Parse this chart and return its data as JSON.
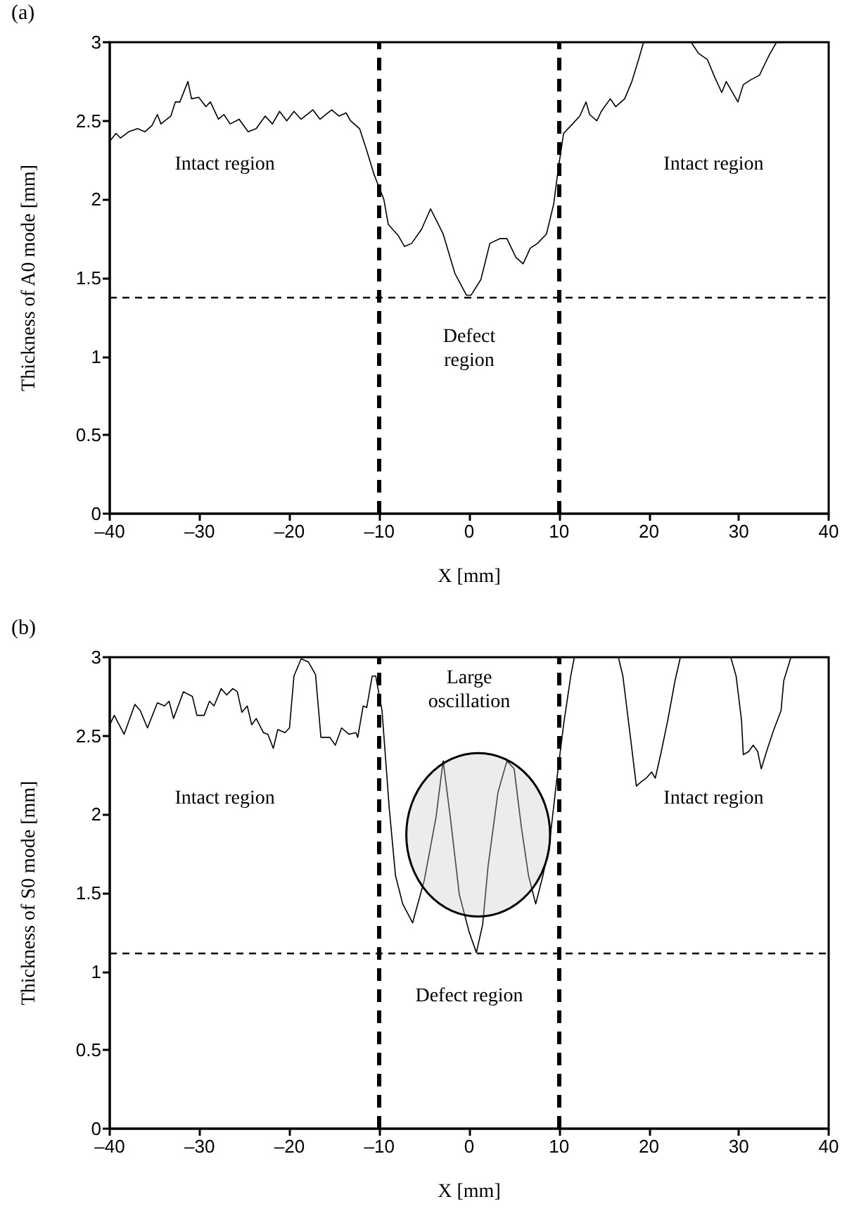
{
  "chart_data": [
    {
      "type": "line",
      "title": "(a)",
      "xlabel": "X [mm]",
      "ylabel": "Thickness of A0 mode [mm]",
      "x": [
        -40,
        -39.3,
        -38.8,
        -37.9,
        -36.9,
        -36.1,
        -35.3,
        -34.7,
        -34.3,
        -33.2,
        -32.7,
        -32.2,
        -31.3,
        -30.9,
        -30.1,
        -29.3,
        -28.8,
        -27.9,
        -27.3,
        -26.6,
        -25.6,
        -24.6,
        -23.7,
        -22.7,
        -21.9,
        -21.1,
        -20.3,
        -19.5,
        -18.7,
        -17.4,
        -16.6,
        -15.3,
        -14.5,
        -13.7,
        -13.2,
        -12.2,
        -11.4,
        -10.6,
        -9.5,
        -9,
        -7.9,
        -7.2,
        -6.4,
        -5.3,
        -4.3,
        -2.9,
        -1.6,
        -0.3,
        0.2,
        1.3,
        2.3,
        3.4,
        4.2,
        5.2,
        6,
        6.8,
        7.6,
        8.6,
        9.4,
        9.9,
        10.5,
        11.5,
        12.3,
        13,
        13.4,
        14.2,
        14.7,
        15.7,
        16.3,
        17.3,
        18.1,
        18.9,
        19.4,
        24.7,
        25.5,
        26.5,
        27.3,
        28.1,
        28.6,
        29.4,
        29.9,
        30.5,
        31.3,
        32.3,
        32.8,
        33.4,
        34.2,
        40
      ],
      "series": [
        {
          "color": "#000000",
          "values": [
            2.37,
            2.42,
            2.39,
            2.43,
            2.45,
            2.43,
            2.47,
            2.54,
            2.48,
            2.53,
            2.62,
            2.62,
            2.75,
            2.64,
            2.65,
            2.59,
            2.62,
            2.51,
            2.54,
            2.48,
            2.51,
            2.43,
            2.45,
            2.53,
            2.48,
            2.56,
            2.5,
            2.56,
            2.51,
            2.57,
            2.51,
            2.57,
            2.53,
            2.55,
            2.5,
            2.45,
            2.31,
            2.16,
            2,
            1.84,
            1.77,
            1.7,
            1.72,
            1.81,
            1.94,
            1.78,
            1.53,
            1.39,
            1.39,
            1.49,
            1.72,
            1.75,
            1.75,
            1.63,
            1.59,
            1.69,
            1.72,
            1.78,
            1.97,
            2.19,
            2.42,
            2.48,
            2.53,
            2.62,
            2.54,
            2.5,
            2.56,
            2.64,
            2.59,
            2.64,
            2.75,
            2.9,
            3,
            3,
            2.93,
            2.89,
            2.78,
            2.68,
            2.75,
            2.67,
            2.62,
            2.73,
            2.76,
            2.79,
            2.85,
            2.92,
            3,
            3
          ]
        }
      ],
      "xlim": [
        -40,
        40
      ],
      "xticks": [
        {
          "value": -40,
          "label": "–40"
        },
        {
          "value": -30,
          "label": "–30"
        },
        {
          "value": -20,
          "label": "–20"
        },
        {
          "value": -10,
          "label": "–10"
        },
        0,
        10,
        20,
        30,
        40
      ],
      "ylim": [
        0,
        3
      ],
      "yticks": [
        0,
        0.5,
        1,
        1.5,
        2,
        2.5,
        3
      ],
      "ref_lines": [
        {
          "axis": "x",
          "value": -10,
          "line_style": "dashed"
        },
        {
          "axis": "x",
          "value": 10,
          "line_style": "dashed"
        },
        {
          "axis": "y",
          "value": 1.38,
          "line_style": "dashed"
        }
      ],
      "annotations": [
        "Intact region",
        "Intact region",
        "Defect\nregion"
      ],
      "grid": false,
      "marker": "none",
      "line_style": "solid"
    },
    {
      "type": "line",
      "title": "(b)",
      "xlabel": "X [mm]",
      "ylabel": "Thickness of S0 mode [mm]",
      "x": [
        -40,
        -39.5,
        -38.4,
        -37.2,
        -36.6,
        -35.8,
        -34.7,
        -33.9,
        -33.4,
        -32.9,
        -31.8,
        -30.8,
        -30.3,
        -29.5,
        -28.9,
        -28.4,
        -27.6,
        -27,
        -26.3,
        -25.8,
        -25.3,
        -24.7,
        -24.2,
        -23.7,
        -22.9,
        -22.4,
        -21.8,
        -21.3,
        -20.5,
        -20,
        -19.5,
        -18.7,
        -17.9,
        -17.1,
        -16.5,
        -15.5,
        -14.9,
        -14.2,
        -13.4,
        -12.6,
        -12.4,
        -11.8,
        -11.4,
        -10.8,
        -10.4,
        -9.7,
        -8.9,
        -8.2,
        -7.4,
        -6.3,
        -5,
        -3.7,
        -2.9,
        -2.1,
        -1.1,
        0,
        0.8,
        1.5,
        2.1,
        3.2,
        4.2,
        5,
        5.8,
        6.6,
        7.4,
        8.2,
        8.9,
        9.7,
        10.5,
        11.3,
        11.7,
        16.6,
        17.1,
        17.9,
        18.6,
        19.2,
        19.7,
        20.3,
        20.7,
        21.3,
        22.1,
        22.9,
        23.5,
        29.1,
        29.7,
        30.3,
        30.5,
        31.1,
        31.6,
        32.1,
        32.5,
        33.2,
        33.9,
        34.7,
        35,
        35.8,
        40
      ],
      "series": [
        {
          "color": "#000000",
          "values": [
            2.57,
            2.63,
            2.51,
            2.7,
            2.66,
            2.55,
            2.71,
            2.69,
            2.72,
            2.61,
            2.78,
            2.75,
            2.63,
            2.63,
            2.72,
            2.69,
            2.8,
            2.76,
            2.8,
            2.78,
            2.65,
            2.69,
            2.57,
            2.61,
            2.52,
            2.51,
            2.42,
            2.54,
            2.52,
            2.55,
            2.88,
            2.99,
            2.97,
            2.89,
            2.49,
            2.49,
            2.44,
            2.55,
            2.51,
            2.52,
            2.49,
            2.69,
            2.68,
            2.88,
            2.88,
            2.66,
            2.04,
            1.61,
            1.43,
            1.31,
            1.58,
            1.98,
            2.34,
            1.98,
            1.49,
            1.25,
            1.12,
            1.3,
            1.67,
            2.14,
            2.34,
            2.29,
            1.92,
            1.61,
            1.43,
            1.61,
            1.8,
            2.2,
            2.57,
            2.88,
            3,
            3,
            2.88,
            2.51,
            2.18,
            2.21,
            2.23,
            2.27,
            2.23,
            2.38,
            2.6,
            2.85,
            3,
            3,
            2.88,
            2.6,
            2.38,
            2.4,
            2.44,
            2.4,
            2.29,
            2.42,
            2.54,
            2.66,
            2.85,
            3,
            3
          ]
        }
      ],
      "xlim": [
        -40,
        40
      ],
      "xticks": [
        {
          "value": -40,
          "label": "–40"
        },
        {
          "value": -30,
          "label": "–30"
        },
        {
          "value": -20,
          "label": "–20"
        },
        {
          "value": -10,
          "label": "–10"
        },
        0,
        10,
        20,
        30,
        40
      ],
      "ylim": [
        0,
        3
      ],
      "yticks": [
        0,
        0.5,
        1,
        1.5,
        2,
        2.5,
        3
      ],
      "ref_lines": [
        {
          "axis": "x",
          "value": -10,
          "line_style": "dashed"
        },
        {
          "axis": "x",
          "value": 10,
          "line_style": "dashed"
        },
        {
          "axis": "y",
          "value": 1.12,
          "line_style": "dashed"
        }
      ],
      "annotations": [
        "Intact region",
        "Intact region",
        "Defect region",
        "Large\noscillation"
      ],
      "grid": false,
      "marker": "none",
      "line_style": "solid"
    }
  ]
}
